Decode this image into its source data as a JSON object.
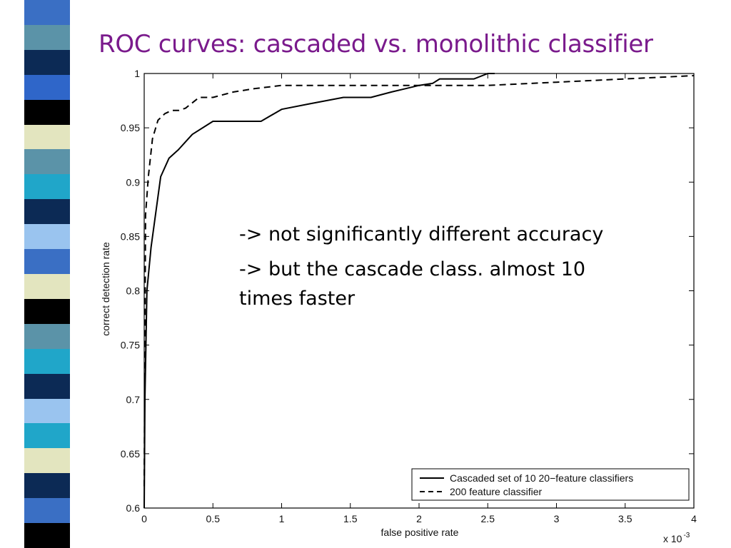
{
  "slide": {
    "title": "ROC curves: cascaded vs. monolithic classifier",
    "bullets": [
      "-> not significantly different accuracy",
      "-> but the cascade class. almost 10 times faster"
    ],
    "stripe_colors": [
      "#3a6fc4",
      "#5b93a8",
      "#0c2a55",
      "#2f66c9",
      "#000000",
      "#e3e5bf",
      "#5b93a8",
      "#20a6c9",
      "#0c2a55",
      "#9ac4ef",
      "#3a6fc4",
      "#e3e5bf",
      "#000000",
      "#5b93a8",
      "#20a6c9",
      "#0c2a55",
      "#9ac4ef",
      "#20a6c9",
      "#e3e5bf",
      "#0c2a55",
      "#3a6fc4",
      "#000000"
    ]
  },
  "chart_data": {
    "type": "line",
    "title": "",
    "xlabel": "false positive rate",
    "ylabel": "correct detection rate",
    "x_multiplier_label": "x 10",
    "x_multiplier_exponent": "-3",
    "xlim": [
      0,
      4
    ],
    "ylim": [
      0.6,
      1.0
    ],
    "xticks": [
      "0",
      "0.5",
      "1",
      "1.5",
      "2",
      "2.5",
      "3",
      "3.5",
      "4"
    ],
    "yticks": [
      "0.6",
      "0.65",
      "0.7",
      "0.75",
      "0.8",
      "0.85",
      "0.9",
      "0.95",
      "1"
    ],
    "grid": false,
    "legend_position": "bottom-right",
    "series": [
      {
        "name": "Cascaded set of 10 20−feature classifiers",
        "style": "solid",
        "x": [
          0,
          0.005,
          0.02,
          0.05,
          0.12,
          0.18,
          0.25,
          0.35,
          0.5,
          0.55,
          0.85,
          1.0,
          1.2,
          1.45,
          1.65,
          1.8,
          1.9,
          2.0,
          2.1,
          2.15,
          2.4,
          2.5,
          2.55
        ],
        "y": [
          0.6,
          0.7,
          0.8,
          0.84,
          0.905,
          0.922,
          0.93,
          0.944,
          0.956,
          0.956,
          0.956,
          0.967,
          0.972,
          0.978,
          0.978,
          0.983,
          0.986,
          0.989,
          0.991,
          0.995,
          0.995,
          1.0,
          1.0
        ]
      },
      {
        "name": "200 feature classifier",
        "style": "dashed",
        "x": [
          0,
          0.01,
          0.03,
          0.06,
          0.1,
          0.15,
          0.2,
          0.25,
          0.3,
          0.4,
          0.5,
          0.65,
          0.8,
          1.0,
          1.2,
          2.0,
          2.5,
          3.0,
          3.5,
          4.0
        ],
        "y": [
          0.62,
          0.87,
          0.905,
          0.94,
          0.957,
          0.963,
          0.966,
          0.966,
          0.968,
          0.978,
          0.978,
          0.983,
          0.986,
          0.989,
          0.989,
          0.989,
          0.989,
          0.992,
          0.995,
          0.998
        ]
      }
    ]
  }
}
